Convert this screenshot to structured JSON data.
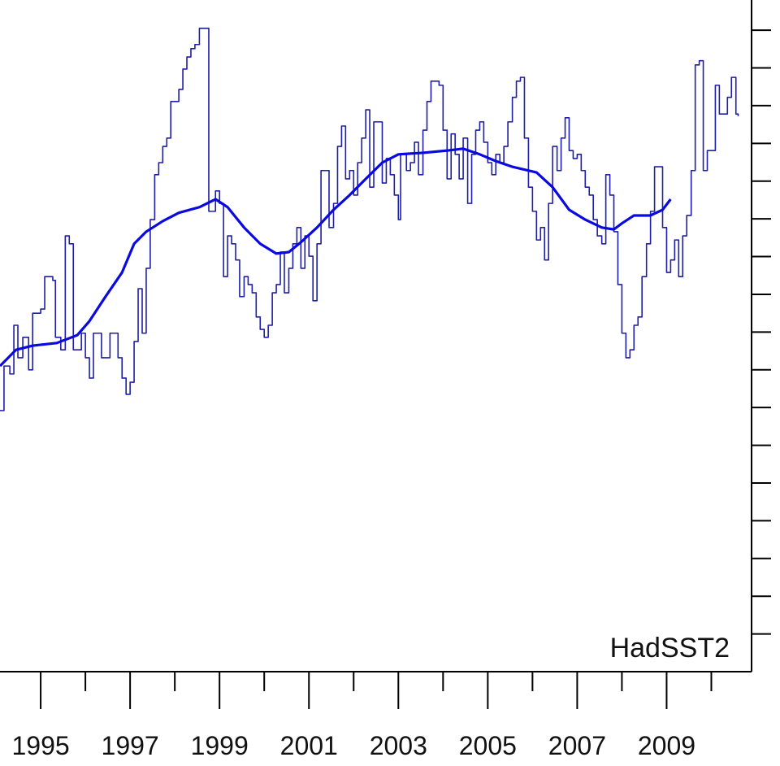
{
  "chart_data": {
    "type": "line",
    "annotation": "HadSST2",
    "xlim": [
      1994.09,
      2010.9
    ],
    "xticks": [
      1995,
      1997,
      1999,
      2001,
      2003,
      2005,
      2007,
      2009
    ],
    "xminor_ticks": [
      1996,
      1998,
      2000,
      2002,
      2004,
      2006,
      2008,
      2010
    ],
    "ylim": [
      0,
      17.8
    ],
    "yticks": [
      1,
      2,
      3,
      4,
      5,
      6,
      7,
      8,
      9,
      10,
      11,
      12,
      13,
      14,
      15,
      16,
      17
    ],
    "series": [
      {
        "color": "#1e1ea8",
        "step": "post",
        "x": [
          1994.09,
          1994.18,
          1994.31,
          1994.4,
          1994.49,
          1994.6,
          1994.73,
          1994.82,
          1995.0,
          1995.09,
          1995.27,
          1995.33,
          1995.45,
          1995.55,
          1995.64,
          1995.73,
          1995.91,
          1996.0,
          1996.09,
          1996.18,
          1996.36,
          1996.55,
          1996.73,
          1996.82,
          1996.91,
          1997.0,
          1997.09,
          1997.18,
          1997.27,
          1997.36,
          1997.45,
          1997.55,
          1997.64,
          1997.73,
          1997.82,
          1997.91,
          1998.09,
          1998.18,
          1998.27,
          1998.36,
          1998.45,
          1998.55,
          1998.76,
          1998.91,
          1999.0,
          1999.09,
          1999.18,
          1999.27,
          1999.36,
          1999.45,
          1999.55,
          1999.64,
          1999.73,
          1999.82,
          1999.91,
          2000.0,
          2000.09,
          2000.18,
          2000.27,
          2000.36,
          2000.45,
          2000.55,
          2000.64,
          2000.73,
          2000.82,
          2000.91,
          2001.0,
          2001.09,
          2001.18,
          2001.27,
          2001.45,
          2001.55,
          2001.64,
          2001.73,
          2001.82,
          2001.91,
          2002.0,
          2002.09,
          2002.18,
          2002.27,
          2002.36,
          2002.45,
          2002.64,
          2002.73,
          2002.82,
          2002.91,
          2003.0,
          2003.05,
          2003.18,
          2003.27,
          2003.36,
          2003.45,
          2003.55,
          2003.64,
          2003.73,
          2003.91,
          2004.0,
          2004.09,
          2004.18,
          2004.27,
          2004.36,
          2004.45,
          2004.55,
          2004.64,
          2004.73,
          2004.82,
          2004.91,
          2005.0,
          2005.09,
          2005.18,
          2005.27,
          2005.36,
          2005.45,
          2005.55,
          2005.64,
          2005.73,
          2005.82,
          2005.91,
          2006.0,
          2006.09,
          2006.18,
          2006.27,
          2006.36,
          2006.45,
          2006.55,
          2006.64,
          2006.73,
          2006.82,
          2006.91,
          2007.0,
          2007.09,
          2007.18,
          2007.27,
          2007.36,
          2007.45,
          2007.55,
          2007.64,
          2007.73,
          2007.82,
          2007.91,
          2008.0,
          2008.09,
          2008.18,
          2008.27,
          2008.36,
          2008.45,
          2008.55,
          2008.64,
          2008.73,
          2008.91,
          2009.0,
          2009.09,
          2009.18,
          2009.27,
          2009.36,
          2009.45,
          2009.55,
          2009.64,
          2009.73,
          2009.82,
          2009.91,
          2010.09,
          2010.18,
          2010.36,
          2010.45,
          2010.55,
          2010.6
        ],
        "values": [
          6.92,
          8.1,
          7.89,
          9.18,
          8.32,
          8.86,
          8.0,
          9.5,
          9.61,
          10.47,
          10.37,
          8.86,
          8.53,
          11.55,
          11.34,
          8.53,
          8.97,
          8.32,
          7.78,
          8.97,
          8.32,
          8.97,
          8.32,
          7.78,
          7.35,
          7.67,
          8.75,
          10.15,
          8.97,
          10.69,
          11.98,
          13.17,
          13.49,
          13.92,
          14.14,
          15.11,
          15.43,
          15.97,
          16.29,
          16.51,
          16.62,
          17.05,
          12.2,
          12.74,
          12.41,
          10.47,
          11.55,
          11.34,
          10.91,
          9.94,
          10.47,
          10.26,
          10.04,
          9.4,
          9.07,
          8.86,
          9.18,
          10.04,
          10.26,
          11.12,
          10.04,
          10.69,
          11.34,
          11.77,
          10.69,
          11.55,
          11.01,
          9.83,
          11.34,
          13.28,
          11.77,
          12.41,
          13.92,
          14.46,
          13.06,
          13.28,
          12.63,
          13.49,
          14.14,
          14.89,
          12.84,
          14.57,
          12.95,
          13.6,
          13.17,
          12.63,
          11.98,
          13.71,
          13.28,
          13.49,
          14.03,
          13.17,
          14.35,
          15.11,
          15.65,
          15.54,
          14.35,
          13.06,
          14.25,
          13.71,
          13.06,
          14.14,
          12.41,
          13.71,
          14.35,
          14.57,
          14.03,
          13.49,
          13.17,
          13.71,
          13.49,
          13.92,
          14.57,
          15.22,
          15.65,
          15.75,
          14.14,
          12.84,
          12.2,
          11.44,
          11.77,
          10.91,
          12.41,
          13.92,
          13.28,
          14.14,
          14.68,
          13.81,
          13.6,
          13.71,
          13.28,
          12.84,
          12.63,
          11.98,
          11.55,
          11.34,
          13.17,
          12.63,
          11.66,
          10.26,
          8.97,
          8.32,
          8.53,
          9.18,
          9.4,
          10.47,
          11.34,
          12.2,
          13.38,
          11.77,
          10.58,
          10.91,
          11.44,
          10.47,
          11.55,
          12.09,
          13.28,
          16.08,
          16.19,
          13.28,
          13.81,
          15.54,
          14.78,
          15.22,
          15.75,
          14.78,
          14.72
        ]
      },
      {
        "color": "#0a0ae0",
        "x": [
          1994.09,
          1994.45,
          1994.82,
          1995.36,
          1995.82,
          1996.09,
          1996.45,
          1996.82,
          1997.09,
          1997.36,
          1997.73,
          1998.09,
          1998.55,
          1998.91,
          1999.18,
          1999.55,
          1999.91,
          2000.27,
          2000.55,
          2000.82,
          2001.18,
          2001.55,
          2001.91,
          2002.27,
          2002.64,
          2003.0,
          2003.55,
          2004.09,
          2004.45,
          2004.82,
          2005.18,
          2005.55,
          2006.09,
          2006.45,
          2006.82,
          2007.18,
          2007.55,
          2007.82,
          2008.0,
          2008.27,
          2008.64,
          2008.91,
          2009.09
        ],
        "values": [
          8.1,
          8.53,
          8.64,
          8.71,
          8.92,
          9.29,
          9.94,
          10.58,
          11.34,
          11.66,
          11.94,
          12.16,
          12.31,
          12.52,
          12.31,
          11.77,
          11.34,
          11.08,
          11.12,
          11.38,
          11.77,
          12.24,
          12.63,
          13.06,
          13.49,
          13.71,
          13.75,
          13.81,
          13.86,
          13.71,
          13.53,
          13.38,
          13.23,
          12.84,
          12.24,
          11.98,
          11.77,
          11.72,
          11.88,
          12.09,
          12.09,
          12.24,
          12.52
        ]
      }
    ]
  }
}
